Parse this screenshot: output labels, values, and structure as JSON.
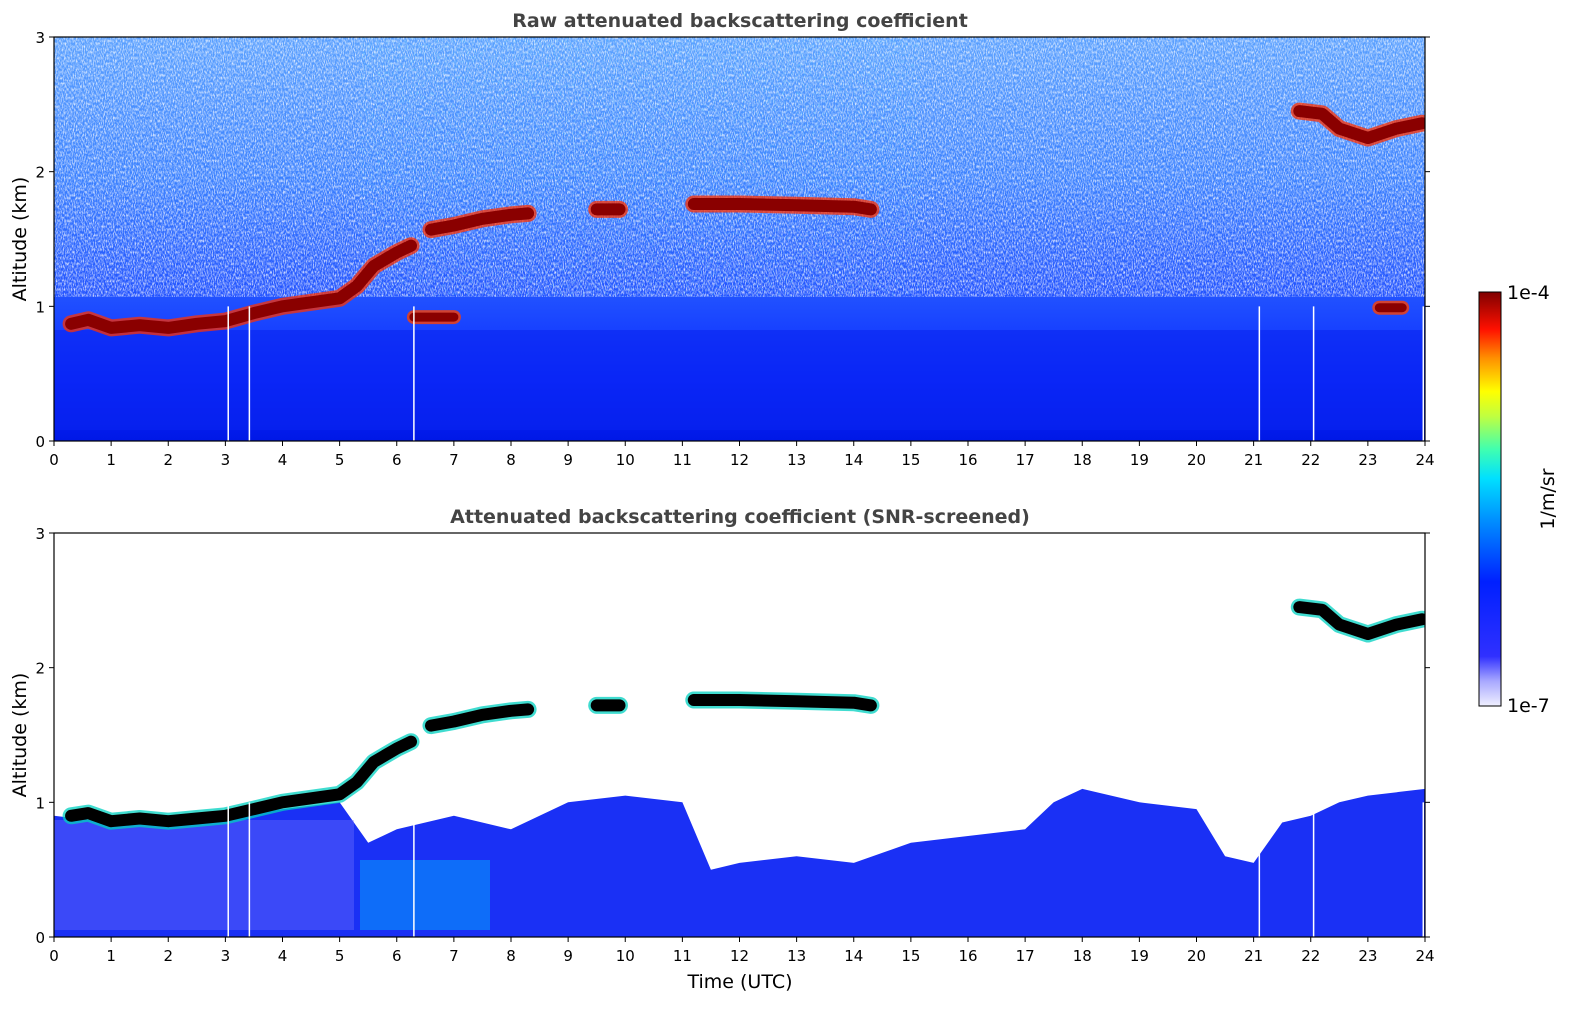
{
  "chart_data": [
    {
      "type": "heatmap",
      "title": "Raw attenuated backscattering coefficient",
      "xlabel": "",
      "ylabel": "Altitude (km)",
      "xlim": [
        0,
        24
      ],
      "ylim": [
        0,
        3
      ],
      "xticks": [
        "0",
        "1",
        "2",
        "3",
        "4",
        "5",
        "6",
        "7",
        "8",
        "9",
        "10",
        "11",
        "12",
        "13",
        "14",
        "15",
        "16",
        "17",
        "18",
        "19",
        "20",
        "21",
        "22",
        "23",
        "24"
      ],
      "yticks": [
        "0",
        "1",
        "2",
        "3"
      ],
      "cloud_layers": [
        {
          "x": [
            0.3,
            0.6,
            1.0,
            1.5,
            2.0,
            2.5,
            3.0,
            3.5,
            4.0,
            4.5,
            5.0,
            5.3,
            5.6,
            6.0,
            6.25
          ],
          "y": [
            0.87,
            0.9,
            0.84,
            0.86,
            0.84,
            0.87,
            0.89,
            0.95,
            1.0,
            1.03,
            1.06,
            1.15,
            1.3,
            1.4,
            1.45
          ]
        },
        {
          "x": [
            6.6,
            7.0,
            7.5,
            8.0,
            8.3
          ],
          "y": [
            1.57,
            1.6,
            1.65,
            1.68,
            1.69
          ]
        },
        {
          "x": [
            9.5,
            9.9
          ],
          "y": [
            1.72,
            1.72
          ]
        },
        {
          "x": [
            11.2,
            12.0,
            13.0,
            14.0,
            14.3
          ],
          "y": [
            1.76,
            1.76,
            1.75,
            1.74,
            1.72
          ]
        },
        {
          "x": [
            21.8,
            22.2,
            22.5,
            23.0,
            23.5,
            23.95
          ],
          "y": [
            2.45,
            2.43,
            2.32,
            2.25,
            2.32,
            2.36
          ]
        }
      ],
      "low_cloud_patches": [
        {
          "x": [
            6.3,
            7.0
          ],
          "y": [
            0.92,
            0.92
          ]
        },
        {
          "x": [
            23.2,
            23.6
          ],
          "y": [
            0.99,
            0.99
          ]
        }
      ],
      "boundary_layer_top_km": 0.9,
      "missing_profiles_utc": [
        3.05,
        3.42,
        6.3,
        21.1,
        22.05,
        23.97
      ]
    },
    {
      "type": "heatmap",
      "title": "Attenuated backscattering coefficient (SNR-screened)",
      "xlabel": "Time (UTC)",
      "ylabel": "Altitude (km)",
      "xlim": [
        0,
        24
      ],
      "ylim": [
        0,
        3
      ],
      "xticks": [
        "0",
        "1",
        "2",
        "3",
        "4",
        "5",
        "6",
        "7",
        "8",
        "9",
        "10",
        "11",
        "12",
        "13",
        "14",
        "15",
        "16",
        "17",
        "18",
        "19",
        "20",
        "21",
        "22",
        "23",
        "24"
      ],
      "yticks": [
        "0",
        "1",
        "2",
        "3"
      ],
      "cloud_layers": [
        {
          "x": [
            0.3,
            0.6,
            1.0,
            1.5,
            2.0,
            2.5,
            3.0,
            3.5,
            4.0,
            4.5,
            5.0,
            5.3,
            5.6,
            6.0,
            6.25
          ],
          "y": [
            0.9,
            0.92,
            0.86,
            0.88,
            0.86,
            0.88,
            0.9,
            0.95,
            1.0,
            1.03,
            1.06,
            1.15,
            1.3,
            1.4,
            1.45
          ]
        },
        {
          "x": [
            6.6,
            7.0,
            7.5,
            8.0,
            8.3
          ],
          "y": [
            1.57,
            1.6,
            1.65,
            1.68,
            1.69
          ]
        },
        {
          "x": [
            9.5,
            9.9
          ],
          "y": [
            1.72,
            1.72
          ]
        },
        {
          "x": [
            11.2,
            12.0,
            13.0,
            14.0,
            14.3
          ],
          "y": [
            1.76,
            1.76,
            1.75,
            1.74,
            1.72
          ]
        },
        {
          "x": [
            21.8,
            22.2,
            22.5,
            23.0,
            23.5,
            23.95
          ],
          "y": [
            2.45,
            2.43,
            2.32,
            2.25,
            2.32,
            2.36
          ]
        }
      ],
      "screened_signal_top": {
        "x": [
          0,
          1,
          2,
          3,
          4,
          5,
          5.5,
          6,
          7,
          8,
          9,
          10,
          11,
          11.5,
          12,
          13,
          14,
          15,
          16,
          17,
          17.5,
          18,
          19,
          20,
          20.5,
          21,
          21.5,
          22,
          22.5,
          23,
          24
        ],
        "y": [
          0.9,
          0.85,
          0.85,
          0.9,
          0.95,
          1.0,
          0.7,
          0.8,
          0.9,
          0.8,
          1.0,
          1.05,
          1.0,
          0.5,
          0.55,
          0.6,
          0.55,
          0.7,
          0.75,
          0.8,
          1.0,
          1.1,
          1.0,
          0.95,
          0.6,
          0.55,
          0.85,
          0.9,
          1.0,
          1.05,
          1.1
        ]
      },
      "missing_profiles_utc": [
        3.05,
        3.42,
        6.3,
        21.1,
        22.05,
        23.97
      ]
    }
  ],
  "colorbar": {
    "label": "1/m/sr",
    "max_label": "1e-4",
    "min_label": "1e-7",
    "scale": "log",
    "colormap": "jet",
    "colors": [
      "#f0f0ff",
      "#b8b8ff",
      "#5050ff",
      "#0000ff",
      "#0050ff",
      "#00a0ff",
      "#00ffff",
      "#80ff80",
      "#ffff00",
      "#ff8000",
      "#ff0000",
      "#800000"
    ]
  }
}
